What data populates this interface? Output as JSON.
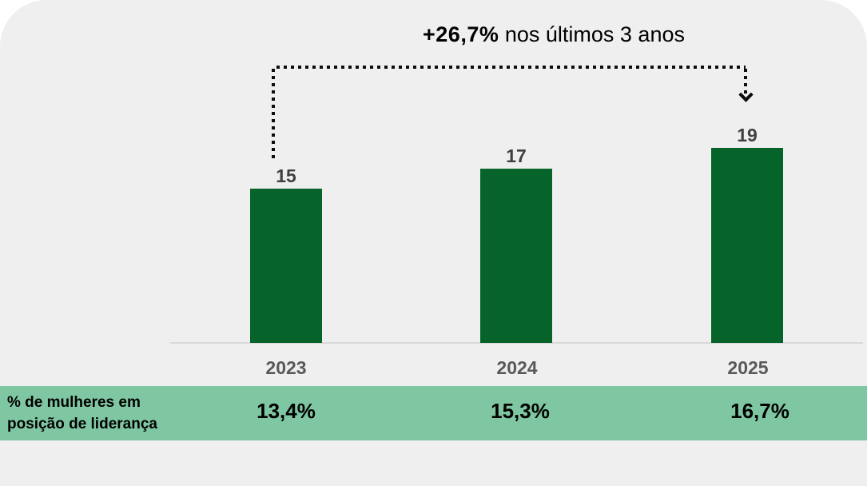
{
  "colors": {
    "page_bg": "#FFFFFF",
    "panel_bg": "#EFEFEF",
    "bar": "#066329",
    "band": "#7FC7A2",
    "value_label": "#404040",
    "category_label": "#595959",
    "axis_line": "#D9D9D9",
    "annotation": "#0D0D0D",
    "table_text": "#000000"
  },
  "annotation": {
    "highlight": "+26,7%",
    "rest": " nos últimos 3 anos"
  },
  "chart_data": {
    "type": "bar",
    "title": "+26,7% nos últimos 3 anos",
    "categories": [
      "2023",
      "2024",
      "2025"
    ],
    "values": [
      15,
      17,
      19
    ],
    "ylim": [
      0,
      20
    ],
    "grid": false,
    "legend": false,
    "bar_color": "#066329",
    "annotation": "+26,7% nos últimos 3 anos (dotted arrow from 2023 bar to 2025 bar)",
    "table_row": {
      "label": "% de mulheres em posição de liderança",
      "values": [
        "13,4%",
        "15,3%",
        "16,7%"
      ]
    }
  }
}
